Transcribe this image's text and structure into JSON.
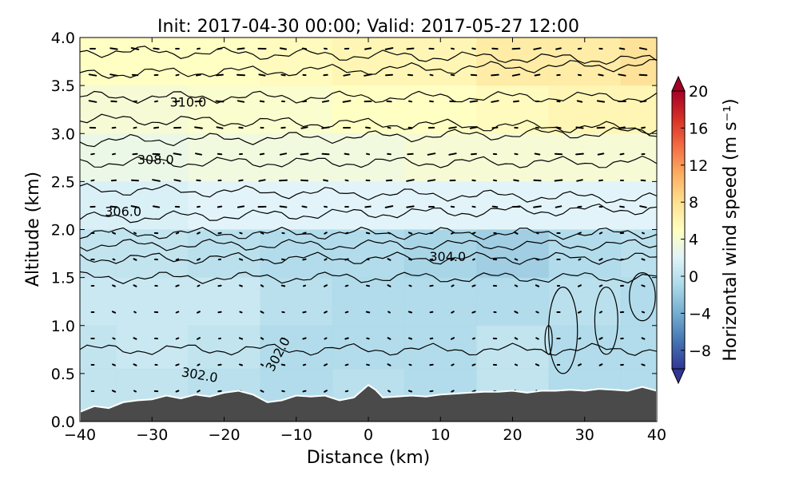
{
  "chart_data": {
    "type": "contour",
    "title": "Init: 2017-04-30 00:00; Valid: 2017-05-27 12:00",
    "xlabel": "Distance (km)",
    "ylabel": "Altitude (km)",
    "xlim": [
      -40,
      40
    ],
    "ylim": [
      0.0,
      4.0
    ],
    "x_ticks": [
      -40,
      -30,
      -20,
      -10,
      0,
      10,
      20,
      30,
      40
    ],
    "x_tick_labels": [
      "−40",
      "−30",
      "−20",
      "−10",
      "0",
      "10",
      "20",
      "30",
      "40"
    ],
    "y_ticks": [
      0.0,
      0.5,
      1.0,
      1.5,
      2.0,
      2.5,
      3.0,
      3.5,
      4.0
    ],
    "y_tick_labels": [
      "0.0",
      "0.5",
      "1.0",
      "1.5",
      "2.0",
      "2.5",
      "3.0",
      "3.5",
      "4.0"
    ],
    "colorbar": {
      "label": "Horizontal wind speed (m s⁻¹)",
      "range": [
        -10,
        20
      ],
      "ticks": [
        20,
        16,
        12,
        8,
        4,
        0,
        -4,
        -8
      ],
      "tick_labels": [
        "20",
        "16",
        "12",
        "8",
        "4",
        "0",
        "−4",
        "−8"
      ],
      "extend": "both",
      "colors": [
        "#313695",
        "#4575b4",
        "#74add1",
        "#abd9e9",
        "#e0f3f8",
        "#ffffbf",
        "#fee090",
        "#fdae61",
        "#f46d43",
        "#d73027",
        "#a50026"
      ]
    },
    "wind_speed_field": {
      "rows": [
        {
          "alt": 3.75,
          "speed": [
            5,
            5,
            5,
            5.5,
            6,
            6,
            7,
            7,
            8
          ]
        },
        {
          "alt": 3.25,
          "speed": [
            4,
            4,
            4.5,
            4.5,
            5,
            5,
            5.5,
            6,
            6
          ]
        },
        {
          "alt": 2.75,
          "speed": [
            3,
            3,
            3.5,
            3.5,
            3.5,
            4,
            4,
            4,
            4
          ]
        },
        {
          "alt": 2.25,
          "speed": [
            1.5,
            1.5,
            2,
            2,
            2,
            2,
            2,
            2,
            2
          ]
        },
        {
          "alt": 1.75,
          "speed": [
            0,
            0,
            -0.5,
            -1,
            -1,
            -1.5,
            -2,
            -1,
            -0.5
          ]
        },
        {
          "alt": 1.25,
          "speed": [
            0.5,
            0.5,
            0.5,
            -0.5,
            -1,
            -1,
            -1,
            -0.5,
            -1
          ]
        },
        {
          "alt": 0.75,
          "speed": [
            0,
            0.5,
            0,
            -1,
            -1,
            -1,
            0,
            -1,
            -1
          ]
        },
        {
          "alt": 0.35,
          "speed": [
            0,
            0,
            -0.5,
            -1,
            -0.5,
            -1,
            0,
            -1,
            -1
          ]
        }
      ]
    },
    "theta_contour_labels": [
      {
        "text": "310.0",
        "x": -25,
        "y": 3.28
      },
      {
        "text": "308.0",
        "x": -29.5,
        "y": 2.68
      },
      {
        "text": "306.0",
        "x": -34,
        "y": 2.14
      },
      {
        "text": "304.0",
        "x": 11,
        "y": 1.67
      },
      {
        "text": "302.0",
        "x": -23.5,
        "y": 0.44
      },
      {
        "text": "302.0",
        "x": -12,
        "y": 0.68
      }
    ],
    "terrain": {
      "x": [
        -40,
        -38,
        -36,
        -34,
        -32,
        -30,
        -28,
        -26,
        -24,
        -22,
        -20,
        -18,
        -16,
        -14,
        -12,
        -10,
        -8,
        -6,
        -4,
        -2,
        0,
        1,
        2,
        4,
        6,
        8,
        10,
        12,
        14,
        16,
        18,
        20,
        22,
        24,
        26,
        28,
        30,
        32,
        34,
        36,
        38,
        40
      ],
      "y": [
        0.1,
        0.16,
        0.14,
        0.2,
        0.22,
        0.23,
        0.27,
        0.24,
        0.28,
        0.26,
        0.3,
        0.32,
        0.28,
        0.2,
        0.22,
        0.27,
        0.26,
        0.27,
        0.22,
        0.25,
        0.38,
        0.33,
        0.25,
        0.26,
        0.27,
        0.26,
        0.28,
        0.29,
        0.3,
        0.31,
        0.31,
        0.32,
        0.3,
        0.32,
        0.32,
        0.33,
        0.32,
        0.34,
        0.33,
        0.32,
        0.36,
        0.32
      ]
    }
  }
}
